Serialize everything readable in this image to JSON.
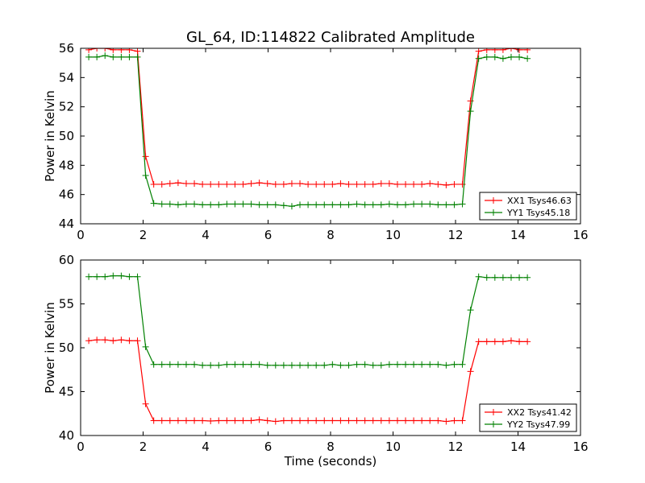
{
  "chart_data": [
    {
      "type": "line",
      "title": "GL_64, ID:114822 Calibrated Amplitude",
      "xlabel": "",
      "ylabel": "Power in Kelvin",
      "xlim": [
        0,
        16
      ],
      "ylim": [
        44,
        56
      ],
      "xticks": [
        "0",
        "2",
        "4",
        "6",
        "8",
        "10",
        "12",
        "14",
        "16"
      ],
      "yticks": [
        "44",
        "46",
        "48",
        "50",
        "52",
        "54",
        "56"
      ],
      "grid": false,
      "legend": "lower-right",
      "x": [
        0.26,
        0.52,
        0.78,
        1.04,
        1.3,
        1.56,
        1.82,
        2.08,
        2.34,
        2.6,
        2.86,
        3.12,
        3.38,
        3.64,
        3.9,
        4.16,
        4.42,
        4.68,
        4.94,
        5.2,
        5.46,
        5.72,
        5.98,
        6.24,
        6.5,
        6.76,
        7.02,
        7.28,
        7.54,
        7.8,
        8.06,
        8.32,
        8.58,
        8.84,
        9.1,
        9.36,
        9.62,
        9.88,
        10.14,
        10.4,
        10.66,
        10.92,
        11.18,
        11.44,
        11.7,
        11.96,
        12.22,
        12.48,
        12.74,
        13.0,
        13.26,
        13.52,
        13.78,
        14.04,
        14.3
      ],
      "series": [
        {
          "name": "XX1 Tsys46.63",
          "color": "#ff0000",
          "values": [
            55.9,
            56.0,
            56.0,
            55.9,
            55.9,
            55.9,
            55.8,
            48.6,
            46.7,
            46.7,
            46.75,
            46.8,
            46.75,
            46.75,
            46.7,
            46.7,
            46.7,
            46.7,
            46.7,
            46.7,
            46.75,
            46.8,
            46.75,
            46.7,
            46.7,
            46.75,
            46.75,
            46.7,
            46.7,
            46.7,
            46.7,
            46.75,
            46.7,
            46.7,
            46.7,
            46.7,
            46.75,
            46.75,
            46.7,
            46.7,
            46.7,
            46.7,
            46.75,
            46.7,
            46.65,
            46.7,
            46.7,
            52.4,
            55.8,
            55.9,
            55.9,
            55.9,
            56.0,
            55.9,
            55.9
          ]
        },
        {
          "name": "YY1 Tsys45.18",
          "color": "#008000",
          "values": [
            55.4,
            55.4,
            55.5,
            55.4,
            55.4,
            55.4,
            55.4,
            47.3,
            45.4,
            45.35,
            45.35,
            45.3,
            45.35,
            45.35,
            45.3,
            45.3,
            45.3,
            45.35,
            45.35,
            45.35,
            45.35,
            45.3,
            45.3,
            45.3,
            45.25,
            45.2,
            45.3,
            45.3,
            45.3,
            45.3,
            45.3,
            45.3,
            45.3,
            45.35,
            45.3,
            45.3,
            45.3,
            45.35,
            45.3,
            45.3,
            45.35,
            45.35,
            45.35,
            45.3,
            45.3,
            45.3,
            45.35,
            51.7,
            55.3,
            55.4,
            55.4,
            55.3,
            55.4,
            55.4,
            55.3
          ]
        }
      ]
    },
    {
      "type": "line",
      "title": "",
      "xlabel": "Time (seconds)",
      "ylabel": "Power in Kelvin",
      "xlim": [
        0,
        16
      ],
      "ylim": [
        40,
        60
      ],
      "xticks": [
        "0",
        "2",
        "4",
        "6",
        "8",
        "10",
        "12",
        "14",
        "16"
      ],
      "yticks": [
        "40",
        "45",
        "50",
        "55",
        "60"
      ],
      "grid": false,
      "legend": "lower-right",
      "x": [
        0.26,
        0.52,
        0.78,
        1.04,
        1.3,
        1.56,
        1.82,
        2.08,
        2.34,
        2.6,
        2.86,
        3.12,
        3.38,
        3.64,
        3.9,
        4.16,
        4.42,
        4.68,
        4.94,
        5.2,
        5.46,
        5.72,
        5.98,
        6.24,
        6.5,
        6.76,
        7.02,
        7.28,
        7.54,
        7.8,
        8.06,
        8.32,
        8.58,
        8.84,
        9.1,
        9.36,
        9.62,
        9.88,
        10.14,
        10.4,
        10.66,
        10.92,
        11.18,
        11.44,
        11.7,
        11.96,
        12.22,
        12.48,
        12.74,
        13.0,
        13.26,
        13.52,
        13.78,
        14.04,
        14.3
      ],
      "series": [
        {
          "name": "XX2 Tsys41.42",
          "color": "#ff0000",
          "values": [
            50.8,
            50.9,
            50.9,
            50.8,
            50.9,
            50.8,
            50.8,
            43.6,
            41.7,
            41.7,
            41.7,
            41.7,
            41.7,
            41.7,
            41.7,
            41.65,
            41.7,
            41.7,
            41.7,
            41.7,
            41.7,
            41.8,
            41.7,
            41.6,
            41.7,
            41.7,
            41.7,
            41.7,
            41.7,
            41.7,
            41.7,
            41.7,
            41.7,
            41.7,
            41.7,
            41.7,
            41.7,
            41.7,
            41.7,
            41.7,
            41.7,
            41.7,
            41.7,
            41.7,
            41.6,
            41.7,
            41.7,
            47.3,
            50.7,
            50.7,
            50.7,
            50.7,
            50.8,
            50.7,
            50.7
          ]
        },
        {
          "name": "YY2 Tsys47.99",
          "color": "#008000",
          "values": [
            58.1,
            58.1,
            58.1,
            58.2,
            58.2,
            58.1,
            58.1,
            50.1,
            48.1,
            48.1,
            48.1,
            48.1,
            48.1,
            48.1,
            48.0,
            48.0,
            48.0,
            48.1,
            48.1,
            48.1,
            48.1,
            48.1,
            48.0,
            48.0,
            48.0,
            48.0,
            48.0,
            48.0,
            48.0,
            48.0,
            48.1,
            48.0,
            48.0,
            48.1,
            48.1,
            48.0,
            48.0,
            48.1,
            48.1,
            48.1,
            48.1,
            48.1,
            48.1,
            48.1,
            48.0,
            48.1,
            48.1,
            54.3,
            58.1,
            58.0,
            58.0,
            58.0,
            58.0,
            58.0,
            58.0
          ]
        }
      ]
    }
  ]
}
